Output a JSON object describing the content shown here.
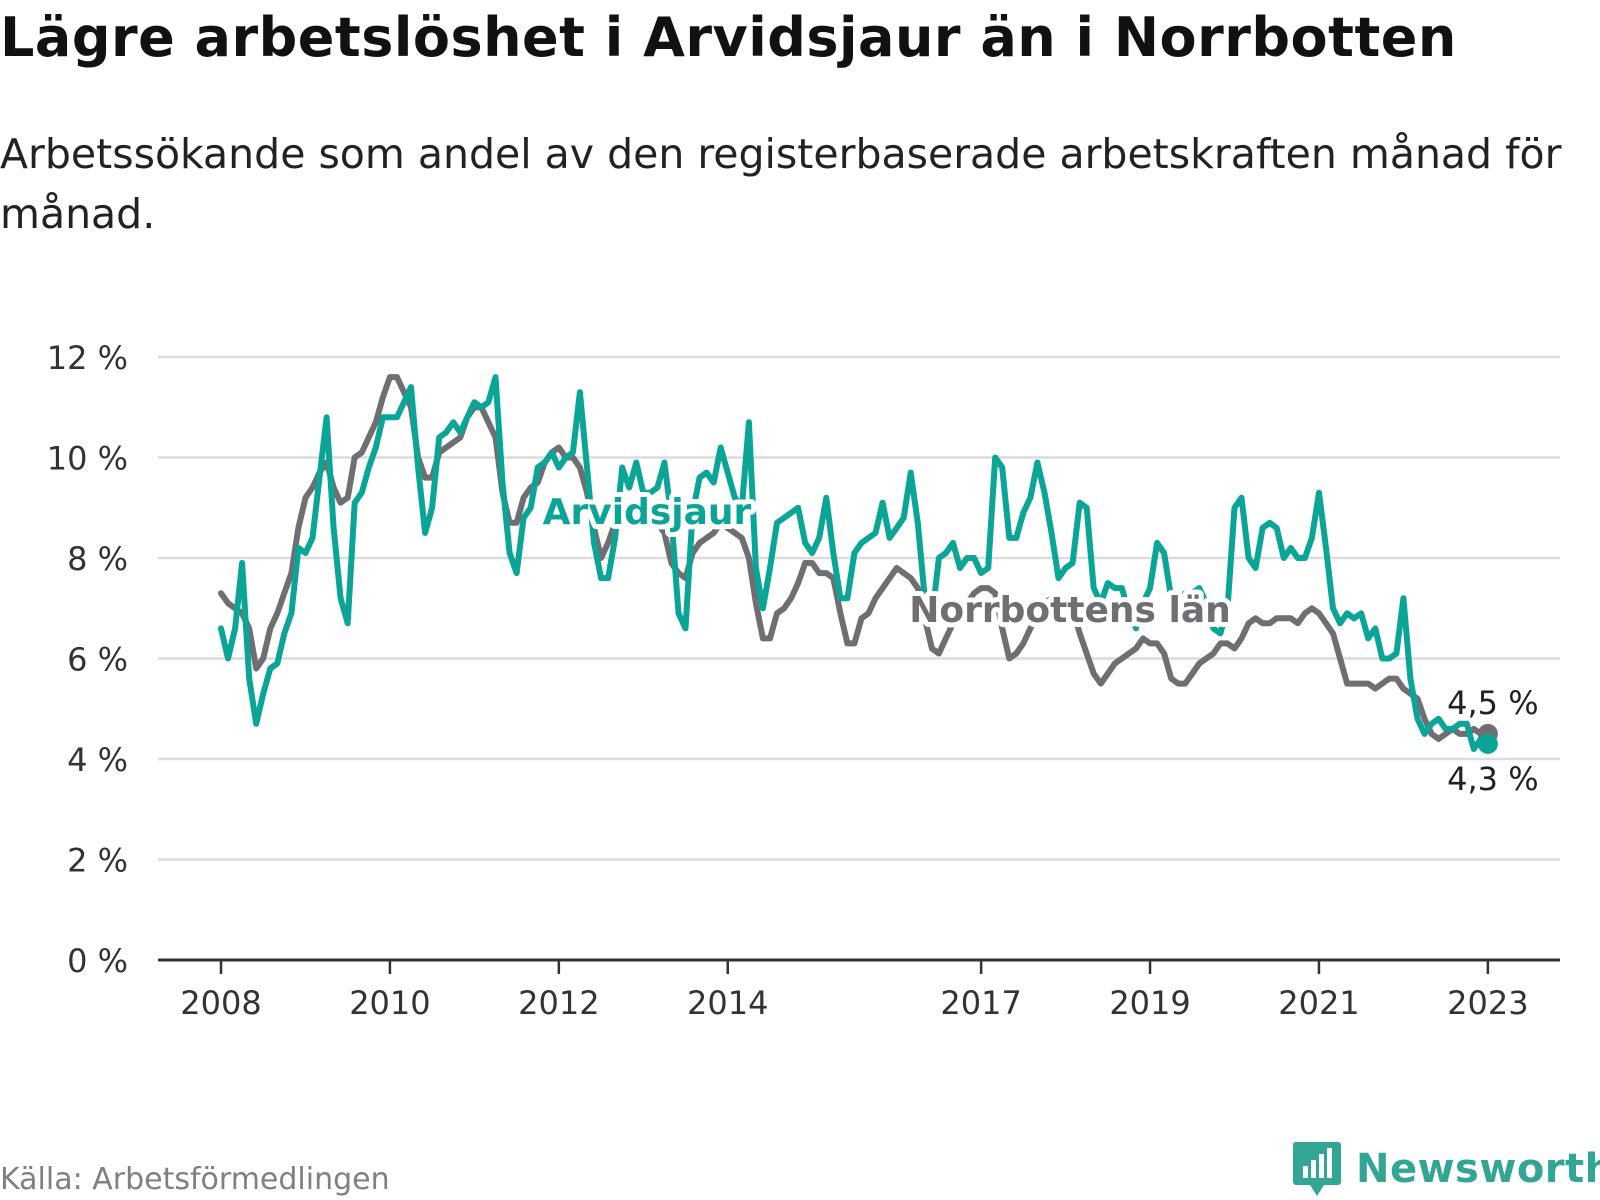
{
  "header": {
    "title": "Lägre arbetslöshet i Arvidsjaur än i Norrbotten",
    "subtitle": "Arbetssökande som andel av den registerbaserade arbetskraften månad för månad."
  },
  "footer": {
    "source": "Källa: Arbetsförmedlingen",
    "brand": "Newsworthy"
  },
  "colors": {
    "arvidsjaur": "#0aa596",
    "norrbotten": "#6e6e73",
    "grid": "#dcdcdc",
    "axis": "#333333",
    "brand": "#32a594"
  },
  "icons": {
    "logo": "newsworthy-bar-chart-icon"
  },
  "chart_data": {
    "type": "line",
    "title": "Lägre arbetslöshet i Arvidsjaur än i Norrbotten",
    "xlabel": "",
    "ylabel": "",
    "x_start": "2008-01",
    "x_end": "2023-04",
    "xlim": [
      2008.0,
      2024.6
    ],
    "ylim": [
      0,
      12
    ],
    "y_ticks": [
      0,
      2,
      4,
      6,
      8,
      10,
      12
    ],
    "y_tick_labels": [
      "0 %",
      "2 %",
      "4 %",
      "6 %",
      "8 %",
      "10 %",
      "12 %"
    ],
    "x_ticks": [
      2008,
      2010,
      2012,
      2014,
      2017,
      2019,
      2021,
      2023
    ],
    "x_tick_labels": [
      "2008",
      "2010",
      "2012",
      "2014",
      "2017",
      "2019",
      "2021",
      "2023"
    ],
    "grid": true,
    "series": [
      {
        "name": "Arvidsjaur",
        "label": "Arvidsjaur",
        "end_label": "4,3 %",
        "values": [
          6.6,
          6.0,
          6.6,
          7.9,
          5.6,
          4.7,
          5.3,
          5.8,
          5.9,
          6.5,
          6.9,
          8.2,
          8.1,
          8.4,
          9.6,
          10.8,
          8.6,
          7.2,
          6.7,
          9.1,
          9.3,
          9.8,
          10.2,
          10.8,
          10.8,
          10.8,
          11.1,
          11.4,
          9.8,
          8.5,
          9.0,
          10.4,
          10.5,
          10.7,
          10.5,
          10.8,
          11.1,
          11.0,
          11.1,
          11.6,
          9.5,
          8.1,
          7.7,
          8.8,
          9.0,
          9.8,
          9.9,
          10.1,
          9.8,
          10.0,
          10.1,
          11.3,
          9.8,
          8.3,
          7.6,
          7.6,
          8.4,
          9.8,
          9.4,
          9.9,
          9.3,
          9.3,
          9.4,
          9.9,
          8.8,
          6.9,
          6.6,
          8.9,
          9.6,
          9.7,
          9.5,
          10.2,
          9.7,
          9.2,
          9.0,
          10.7,
          7.8,
          7.0,
          7.8,
          8.7,
          8.8,
          8.9,
          9.0,
          8.3,
          8.1,
          8.4,
          9.2,
          8.1,
          7.2,
          7.2,
          8.1,
          8.3,
          8.4,
          8.5,
          9.1,
          8.4,
          8.6,
          8.8,
          9.7,
          8.7,
          7.2,
          6.8,
          8.0,
          8.1,
          8.3,
          7.8,
          8.0,
          8.0,
          7.7,
          7.8,
          10.0,
          9.8,
          8.4,
          8.4,
          8.9,
          9.2,
          9.9,
          9.3,
          8.5,
          7.6,
          7.8,
          7.9,
          9.1,
          9.0,
          7.4,
          7.1,
          7.5,
          7.4,
          7.4,
          6.9,
          6.6,
          7.1,
          7.4,
          8.3,
          8.1,
          7.2,
          7.2,
          7.3,
          7.3,
          7.4,
          7.1,
          6.6,
          6.5,
          7.0,
          9.0,
          9.2,
          8.0,
          7.8,
          8.6,
          8.7,
          8.6,
          8.0,
          8.2,
          8.0,
          8.0,
          8.4,
          9.3,
          8.2,
          7.0,
          6.7,
          6.9,
          6.8,
          6.9,
          6.4,
          6.6,
          6.0,
          6.0,
          6.1,
          7.2,
          5.6,
          4.8,
          4.5,
          4.7,
          4.8,
          4.6,
          4.6,
          4.7,
          4.7,
          4.2,
          4.4,
          4.3
        ],
        "last_value": 4.3
      },
      {
        "name": "Norrbottens län",
        "label": "Norrbottens län",
        "end_label": "4,5 %",
        "values": [
          7.3,
          7.1,
          7.0,
          6.9,
          6.6,
          5.8,
          6.0,
          6.6,
          6.9,
          7.3,
          7.7,
          8.6,
          9.2,
          9.4,
          9.7,
          9.9,
          9.4,
          9.1,
          9.2,
          10.0,
          10.1,
          10.4,
          10.7,
          11.2,
          11.6,
          11.6,
          11.3,
          11.0,
          10.0,
          9.6,
          9.6,
          10.1,
          10.2,
          10.3,
          10.4,
          10.8,
          11.0,
          11.0,
          10.7,
          10.4,
          9.3,
          8.7,
          8.7,
          9.2,
          9.4,
          9.5,
          9.9,
          10.1,
          10.2,
          10.0,
          10.0,
          9.8,
          9.3,
          8.6,
          8.0,
          8.3,
          8.7,
          8.9,
          9.0,
          9.1,
          9.2,
          9.0,
          8.7,
          8.5,
          7.9,
          7.7,
          7.6,
          8.1,
          8.3,
          8.4,
          8.5,
          8.7,
          8.6,
          8.5,
          8.4,
          8.0,
          7.1,
          6.4,
          6.4,
          6.9,
          7.0,
          7.2,
          7.5,
          7.9,
          7.9,
          7.7,
          7.7,
          7.6,
          6.9,
          6.3,
          6.3,
          6.8,
          6.9,
          7.2,
          7.4,
          7.6,
          7.8,
          7.7,
          7.6,
          7.4,
          6.8,
          6.2,
          6.1,
          6.4,
          6.7,
          6.9,
          7.1,
          7.3,
          7.4,
          7.4,
          7.3,
          6.6,
          6.0,
          6.1,
          6.3,
          6.6,
          6.9,
          7.1,
          7.2,
          7.2,
          7.1,
          7.0,
          6.5,
          6.1,
          5.7,
          5.5,
          5.7,
          5.9,
          6.0,
          6.1,
          6.2,
          6.4,
          6.3,
          6.3,
          6.1,
          5.6,
          5.5,
          5.5,
          5.7,
          5.9,
          6.0,
          6.1,
          6.3,
          6.3,
          6.2,
          6.4,
          6.7,
          6.8,
          6.7,
          6.7,
          6.8,
          6.8,
          6.8,
          6.7,
          6.9,
          7.0,
          6.9,
          6.7,
          6.5,
          6.0,
          5.5,
          5.5,
          5.5,
          5.5,
          5.4,
          5.5,
          5.6,
          5.6,
          5.4,
          5.3,
          5.2,
          4.8,
          4.5,
          4.4,
          4.5,
          4.6,
          4.5,
          4.5,
          4.6,
          4.5,
          4.5
        ],
        "last_value": 4.5
      }
    ]
  }
}
